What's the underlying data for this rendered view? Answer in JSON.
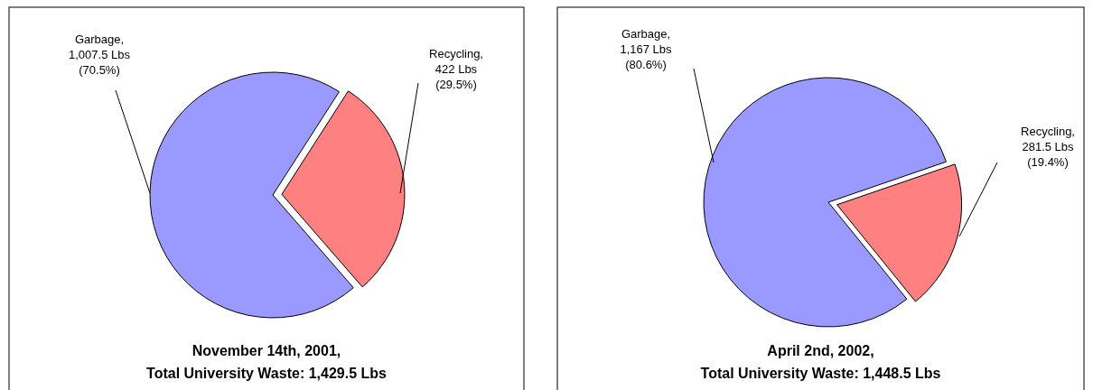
{
  "chart_data": [
    {
      "type": "pie",
      "title": "November 14th, 2001,",
      "subtitle": "Total University Waste: 1,429.5 Lbs",
      "values": [
        1007.5,
        422
      ],
      "colors": [
        "#9999ff",
        "#ff8080"
      ],
      "value_labels": [
        "Garbage, 1,007.5 Lbs (70.5%)",
        "Recycling, 422 Lbs (29.5%)"
      ]
    },
    {
      "type": "pie",
      "title": "April 2nd, 2002,",
      "subtitle": "Total University Waste: 1,448.5 Lbs",
      "values": [
        1167,
        281.5
      ],
      "colors": [
        "#9999ff",
        "#ff8080"
      ],
      "value_labels": [
        "Garbage, 1,167 Lbs (80.6%)",
        "Recycling, 281.5 Lbs (19.4%)"
      ]
    }
  ]
}
